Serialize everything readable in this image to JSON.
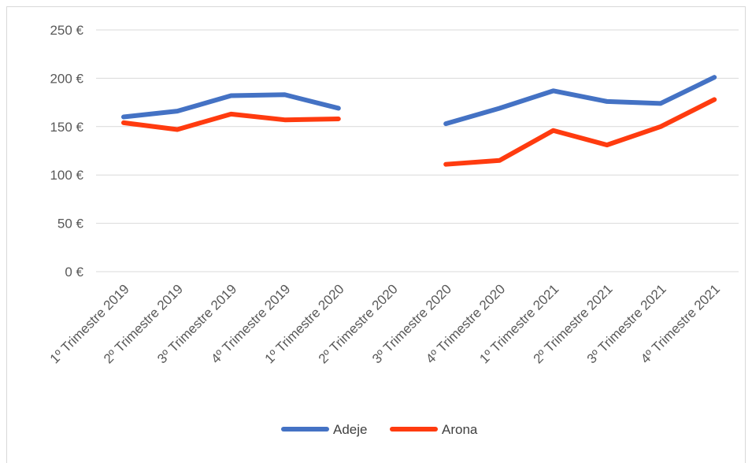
{
  "chart_data": {
    "type": "line",
    "title": "",
    "xlabel": "",
    "ylabel": "",
    "categories": [
      "1º Trimestre 2019",
      "2º Trimestre 2019",
      "3º Trimestre 2019",
      "4º Trimestre 2019",
      "1º Trimestre 2020",
      "2º Trimestre 2020",
      "3º Trimestre 2020",
      "4º Trimestre 2020",
      "1º Trimestre 2021",
      "2º Trimestre 2021",
      "3º Trimestre 2021",
      "4º Trimestre 2021"
    ],
    "y_ticks": [
      "0 €",
      "50 €",
      "100 €",
      "150 €",
      "200 €",
      "250 €"
    ],
    "ylim": [
      0,
      250
    ],
    "grid": true,
    "legend_position": "bottom",
    "series": [
      {
        "name": "Adeje",
        "color": "#4472C4",
        "values": [
          160,
          166,
          182,
          183,
          169,
          null,
          153,
          169,
          187,
          176,
          174,
          201
        ]
      },
      {
        "name": "Arona",
        "color": "#FF3B0F",
        "values": [
          154,
          147,
          163,
          157,
          158,
          null,
          111,
          115,
          146,
          131,
          150,
          178
        ]
      }
    ]
  }
}
